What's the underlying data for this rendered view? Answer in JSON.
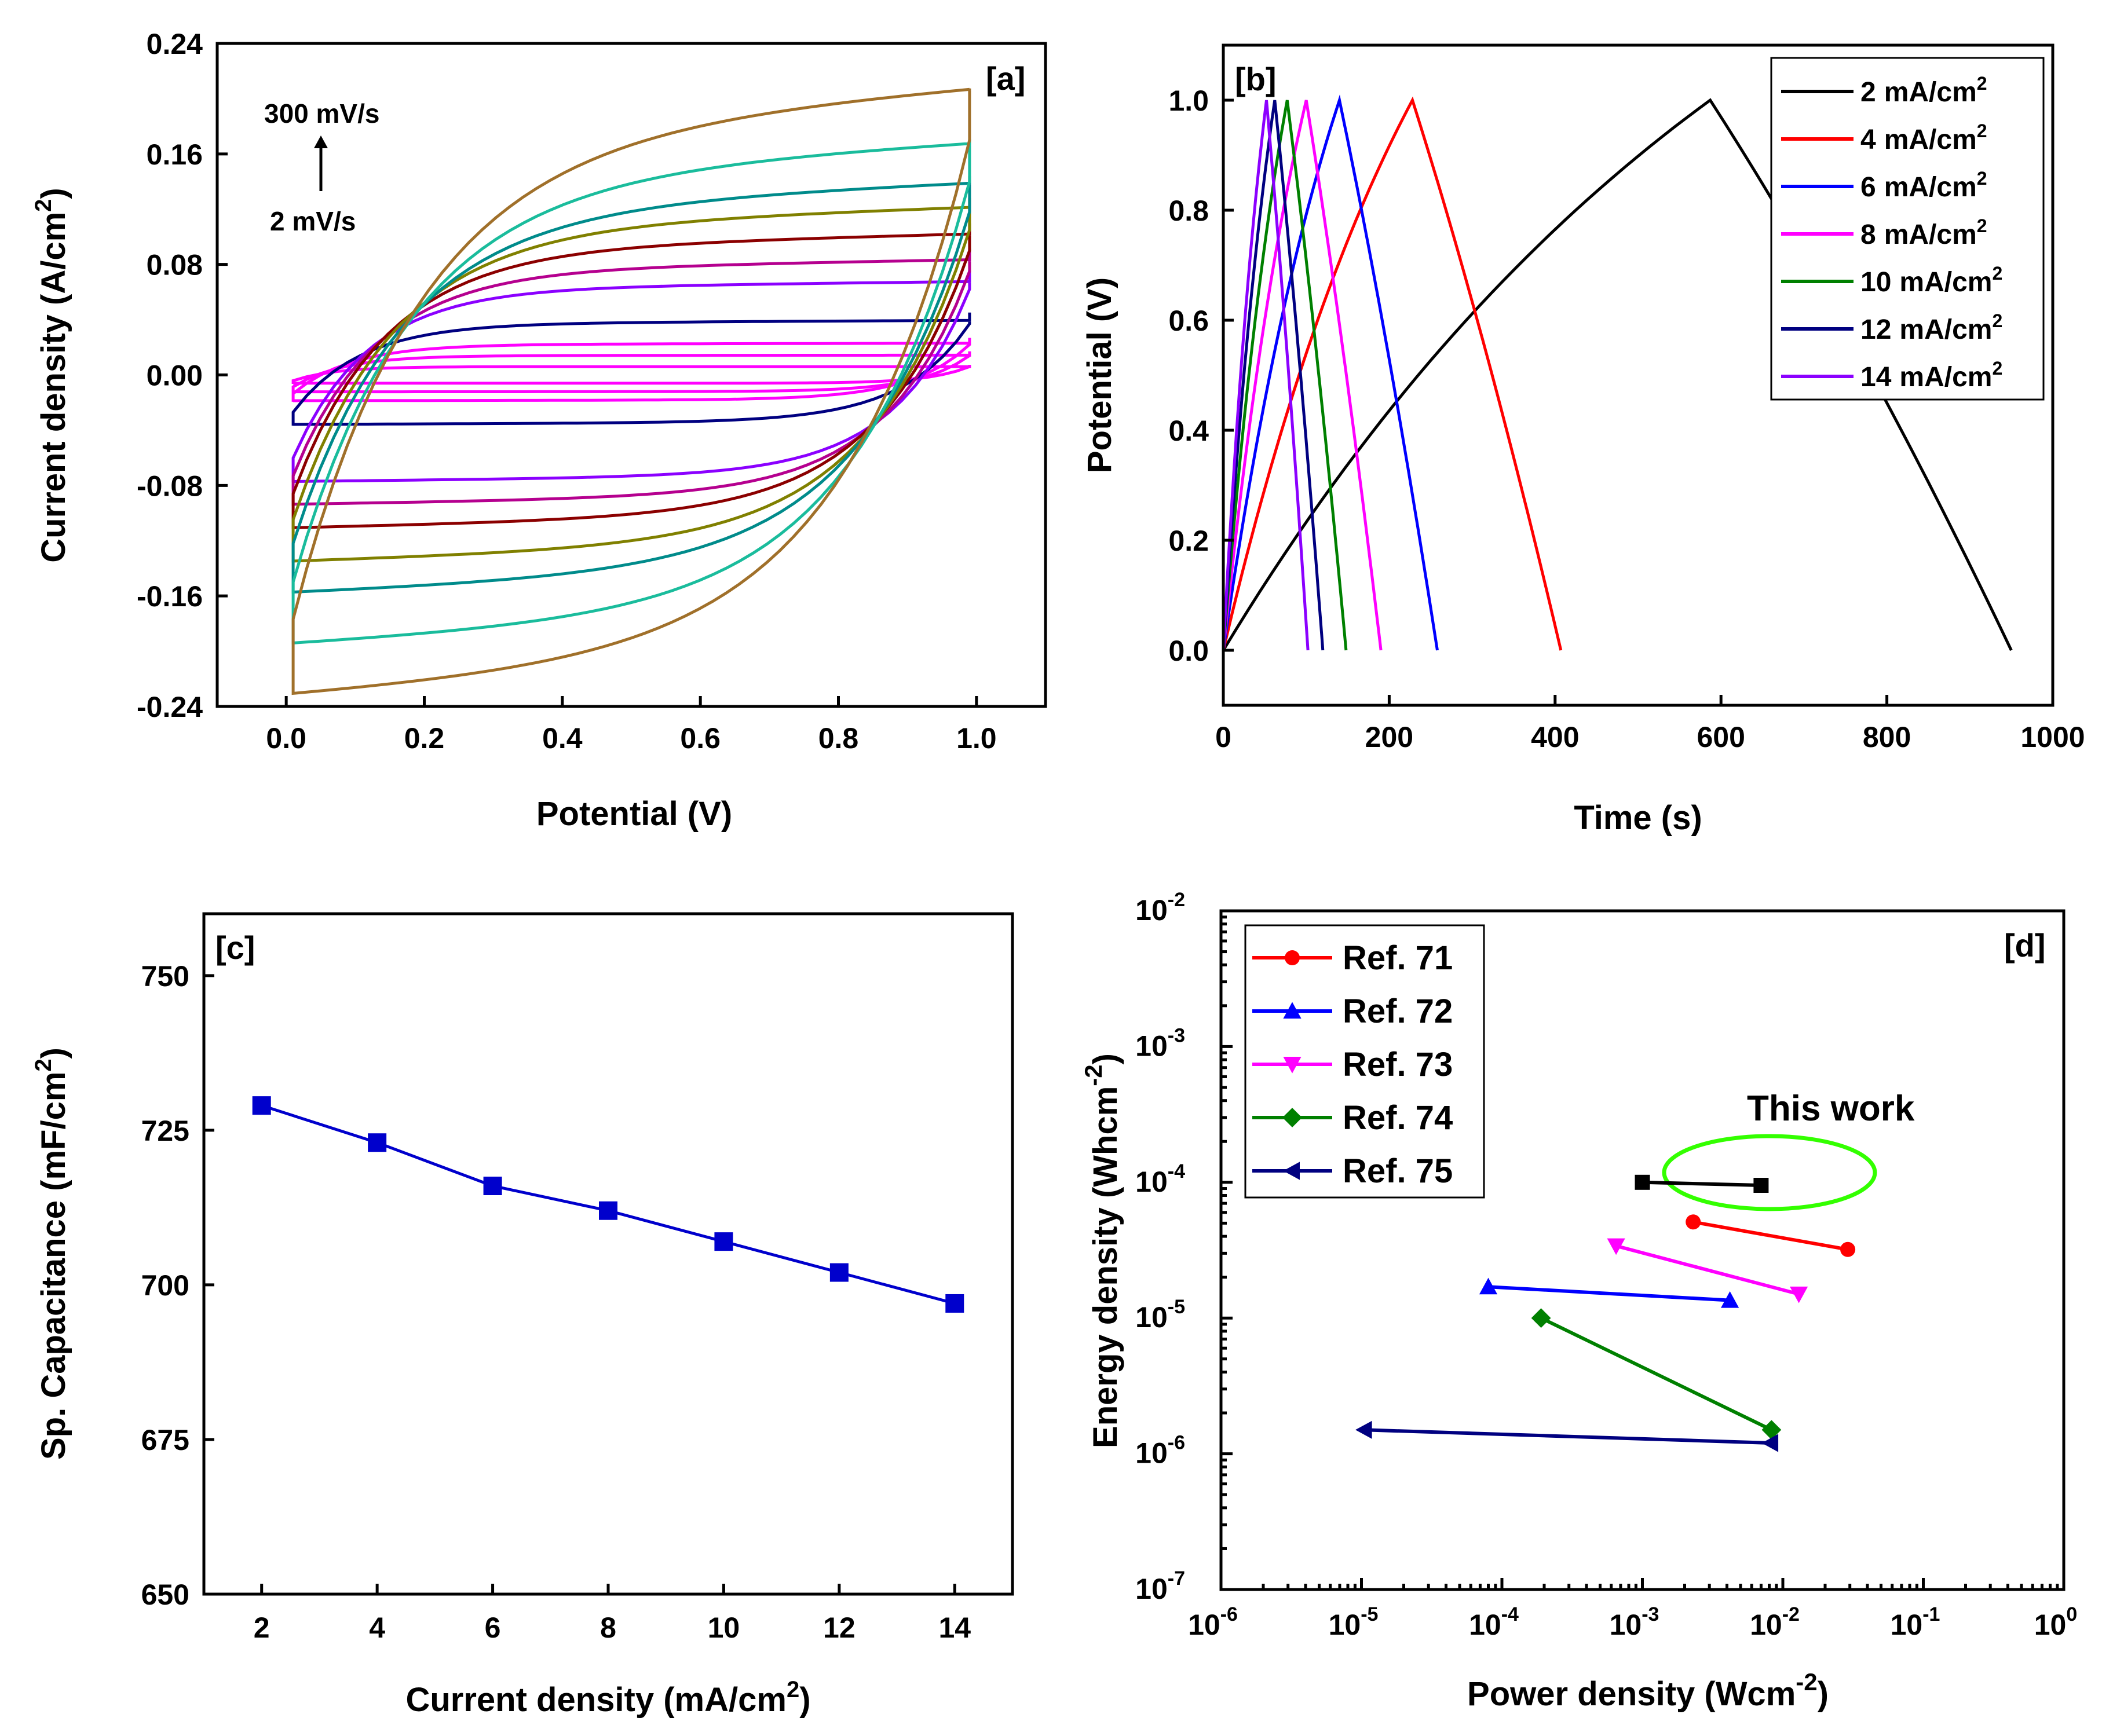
{
  "chart_data": [
    {
      "panel": "[a]",
      "type": "line",
      "xlabel": "Potential (V)",
      "ylabel_main": "Current density (A/cm",
      "ylabel_sup": "2",
      "ylabel_tail": ")",
      "xlim": [
        -0.1,
        1.1
      ],
      "ylim": [
        -0.24,
        0.24
      ],
      "xticks": [
        "0.0",
        "0.2",
        "0.4",
        "0.6",
        "0.8",
        "1.0"
      ],
      "yticks": [
        "-0.24",
        "-0.16",
        "-0.08",
        "0.00",
        "0.08",
        "0.16",
        "0.24"
      ],
      "annotation_top": "300 mV/s",
      "annotation_bottom": "2 mV/s",
      "series": [
        {
          "color": "#FF00FF",
          "upper": 0.006,
          "lower": -0.006
        },
        {
          "color": "#FF00FF",
          "upper": 0.014,
          "lower": -0.012
        },
        {
          "color": "#FF00FF",
          "upper": 0.022,
          "lower": -0.018
        },
        {
          "color": "#000080",
          "upper": 0.037,
          "lower": -0.034
        },
        {
          "color": "#8B00FF",
          "upper": 0.062,
          "lower": -0.072
        },
        {
          "color": "#B5008F",
          "upper": 0.075,
          "lower": -0.086
        },
        {
          "color": "#8B0000",
          "upper": 0.09,
          "lower": -0.1
        },
        {
          "color": "#808000",
          "upper": 0.105,
          "lower": -0.12
        },
        {
          "color": "#008B8B",
          "upper": 0.118,
          "lower": -0.138
        },
        {
          "color": "#1ABC9C",
          "upper": 0.14,
          "lower": -0.168
        },
        {
          "color": "#A0702A",
          "upper": 0.17,
          "lower": -0.197
        }
      ]
    },
    {
      "panel": "[b]",
      "type": "line",
      "xlabel": "Time (s)",
      "ylabel": "Potential (V)",
      "xlim": [
        0,
        1000
      ],
      "ylim": [
        -0.1,
        1.1
      ],
      "xticks": [
        "0",
        "200",
        "400",
        "600",
        "800",
        "1000"
      ],
      "yticks": [
        "0.0",
        "0.2",
        "0.4",
        "0.6",
        "0.8",
        "1.0"
      ],
      "legend_unit": "mA/cm",
      "legend_sup": "2",
      "series": [
        {
          "name": "2",
          "color": "#000000",
          "peak_time": 587,
          "end_time": 950
        },
        {
          "name": "4",
          "color": "#FF0000",
          "peak_time": 228,
          "end_time": 407
        },
        {
          "name": "6",
          "color": "#0000FF",
          "peak_time": 140,
          "end_time": 258
        },
        {
          "name": "8",
          "color": "#FF00FF",
          "peak_time": 100,
          "end_time": 190
        },
        {
          "name": "10",
          "color": "#008000",
          "peak_time": 77,
          "end_time": 148
        },
        {
          "name": "12",
          "color": "#000080",
          "peak_time": 62,
          "end_time": 120
        },
        {
          "name": "14",
          "color": "#8B00FF",
          "peak_time": 52,
          "end_time": 102
        }
      ]
    },
    {
      "panel": "[c]",
      "type": "line",
      "xlabel_main": "Current density (mA/cm",
      "xlabel_sup": "2",
      "xlabel_tail": ")",
      "ylabel_main": "Sp. Capacitance (mF/cm",
      "ylabel_sup": "2",
      "ylabel_tail": ")",
      "xlim": [
        1,
        15
      ],
      "ylim": [
        650,
        760
      ],
      "xticks": [
        "2",
        "4",
        "6",
        "8",
        "10",
        "12",
        "14"
      ],
      "yticks": [
        "650",
        "675",
        "700",
        "725",
        "750"
      ],
      "color": "#0000CC",
      "x": [
        2,
        4,
        6,
        8,
        10,
        12,
        14
      ],
      "y": [
        729,
        723,
        716,
        712,
        707,
        702,
        697
      ]
    },
    {
      "panel": "[d]",
      "type": "scatter",
      "xscale": "log",
      "yscale": "log",
      "xlabel_main": "Power density (Wcm",
      "xlabel_sup": "-2",
      "xlabel_tail": ")",
      "ylabel_main": "Energy density (Whcm",
      "ylabel_sup": "-2",
      "ylabel_tail": ")",
      "xlim_exp": [
        -6,
        0
      ],
      "ylim_exp": [
        -7,
        -2
      ],
      "xtick_base": "10",
      "xtick_exps": [
        "-6",
        "-5",
        "-4",
        "-3",
        "-2",
        "-1",
        "0"
      ],
      "xtick_zero_label": "10",
      "ytick_base": "10",
      "ytick_exps": [
        "-7",
        "-6",
        "-5",
        "-4",
        "-3",
        "-2"
      ],
      "this_work_label": "This work",
      "series": [
        {
          "name": "Ref. 71",
          "color": "#FF0000",
          "marker": "circle",
          "points": [
            [
              0.0023,
              5.1e-05
            ],
            [
              0.029,
              3.2e-05
            ]
          ]
        },
        {
          "name": "Ref. 72",
          "color": "#0000FF",
          "marker": "triangle-up",
          "points": [
            [
              8e-05,
              1.7e-05
            ],
            [
              0.0042,
              1.35e-05
            ]
          ]
        },
        {
          "name": "Ref. 73",
          "color": "#FF00FF",
          "marker": "triangle-down",
          "points": [
            [
              0.00065,
              3.4e-05
            ],
            [
              0.013,
              1.5e-05
            ]
          ]
        },
        {
          "name": "Ref. 74",
          "color": "#008000",
          "marker": "diamond",
          "points": [
            [
              0.00019,
              1e-05
            ],
            [
              0.0083,
              1.5e-06
            ]
          ]
        },
        {
          "name": "Ref. 75",
          "color": "#000080",
          "marker": "triangle-left",
          "points": [
            [
              1.05e-05,
              1.5e-06
            ],
            [
              0.0082,
              1.2e-06
            ]
          ]
        },
        {
          "name": "This work",
          "color": "#000000",
          "marker": "square",
          "points": [
            [
              0.001,
              0.0001
            ],
            [
              0.007,
              9.5e-05
            ]
          ]
        }
      ],
      "highlight_color": "#33FF00"
    }
  ]
}
